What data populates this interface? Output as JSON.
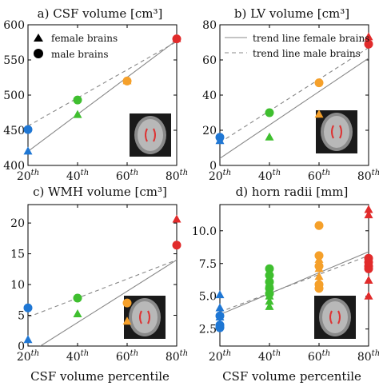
{
  "colors": {
    "p20": "#1f77d4",
    "p40": "#3fbf2f",
    "p60": "#f5a02a",
    "p80": "#e12b2b",
    "trend": "#888888"
  },
  "legend_a": {
    "female": "female brains",
    "male": "male brains"
  },
  "legend_b": {
    "female": "trend line female brains",
    "male": "trend line male brains"
  },
  "xlabel": "CSF volume percentile",
  "chart_data": [
    {
      "panel": "a",
      "type": "scatter",
      "title": "a) CSF volume [cm³]",
      "x": [
        20,
        40,
        60,
        80
      ],
      "xticks": [
        "20th",
        "40th",
        "60th",
        "80th"
      ],
      "ylim": [
        400,
        600
      ],
      "yticks": [
        400,
        450,
        500,
        550,
        600
      ],
      "female": [
        [
          20,
          420
        ],
        [
          40,
          472
        ],
        [
          60,
          520
        ],
        [
          80,
          580
        ]
      ],
      "male": [
        [
          20,
          451
        ],
        [
          40,
          493
        ],
        [
          60,
          520
        ],
        [
          80,
          580
        ]
      ],
      "trend_female": [
        [
          20,
          420
        ],
        [
          80,
          578
        ]
      ],
      "trend_male": [
        [
          20,
          456
        ],
        [
          80,
          576
        ]
      ]
    },
    {
      "panel": "b",
      "type": "scatter",
      "title": "b) LV volume [cm³]",
      "x": [
        20,
        40,
        60,
        80
      ],
      "xticks": [
        "20th",
        "40th",
        "60th",
        "80th"
      ],
      "ylim": [
        0,
        80
      ],
      "yticks": [
        0,
        20,
        40,
        60,
        80
      ],
      "female": [
        [
          20,
          14
        ],
        [
          40,
          16
        ],
        [
          60,
          29
        ],
        [
          80,
          73
        ]
      ],
      "male": [
        [
          20,
          16
        ],
        [
          40,
          30
        ],
        [
          60,
          47
        ],
        [
          80,
          69
        ]
      ],
      "trend_female": [
        [
          20,
          4
        ],
        [
          80,
          61
        ]
      ],
      "trend_male": [
        [
          20,
          13
        ],
        [
          80,
          67
        ]
      ]
    },
    {
      "panel": "c",
      "type": "scatter",
      "title": "c) WMH volume [cm³]",
      "x": [
        20,
        40,
        60,
        80
      ],
      "xticks": [
        "20th",
        "40th",
        "60th",
        "80th"
      ],
      "ylim": [
        0,
        23
      ],
      "yticks": [
        0,
        5,
        10,
        15,
        20
      ],
      "female": [
        [
          20,
          1
        ],
        [
          40,
          5.2
        ],
        [
          60,
          4
        ],
        [
          80,
          20.6
        ]
      ],
      "male": [
        [
          20,
          6.2
        ],
        [
          40,
          7.8
        ],
        [
          60,
          7
        ],
        [
          80,
          16.4
        ]
      ],
      "trend_female": [
        [
          25,
          0
        ],
        [
          80,
          14
        ]
      ],
      "trend_male": [
        [
          20,
          4.7
        ],
        [
          80,
          14
        ]
      ]
    },
    {
      "panel": "d",
      "type": "scatter",
      "title": "d) horn radii [mm]",
      "x": [
        20,
        40,
        60,
        80
      ],
      "xticks": [
        "20th",
        "40th",
        "60th",
        "80th"
      ],
      "ylim": [
        1.2,
        12
      ],
      "yticks": [
        2.5,
        5.0,
        7.5,
        10.0
      ],
      "female": [
        [
          20,
          5.1
        ],
        [
          20,
          4.1
        ],
        [
          20,
          3.4
        ],
        [
          20,
          2.9
        ],
        [
          40,
          6.0
        ],
        [
          40,
          5.5
        ],
        [
          40,
          5.0
        ],
        [
          40,
          4.6
        ],
        [
          40,
          4.2
        ],
        [
          60,
          7.8
        ],
        [
          60,
          7.1
        ],
        [
          60,
          6.5
        ],
        [
          60,
          6.1
        ],
        [
          60,
          5.8
        ],
        [
          80,
          11.6
        ],
        [
          80,
          11.2
        ],
        [
          80,
          7.5
        ],
        [
          80,
          6.2
        ],
        [
          80,
          5.0
        ]
      ],
      "male": [
        [
          20,
          3.5
        ],
        [
          20,
          2.8
        ],
        [
          20,
          2.6
        ],
        [
          40,
          7.1
        ],
        [
          40,
          6.6
        ],
        [
          40,
          6.1
        ],
        [
          40,
          5.6
        ],
        [
          40,
          5.2
        ],
        [
          60,
          10.4
        ],
        [
          60,
          8.1
        ],
        [
          60,
          7.3
        ],
        [
          60,
          5.9
        ],
        [
          60,
          5.6
        ],
        [
          80,
          7.9
        ],
        [
          80,
          7.6
        ],
        [
          80,
          7.3
        ],
        [
          80,
          7.1
        ]
      ],
      "trend_female": [
        [
          20,
          3.6
        ],
        [
          80,
          8.4
        ]
      ],
      "trend_male": [
        [
          20,
          3.8
        ],
        [
          80,
          8.1
        ]
      ]
    }
  ]
}
